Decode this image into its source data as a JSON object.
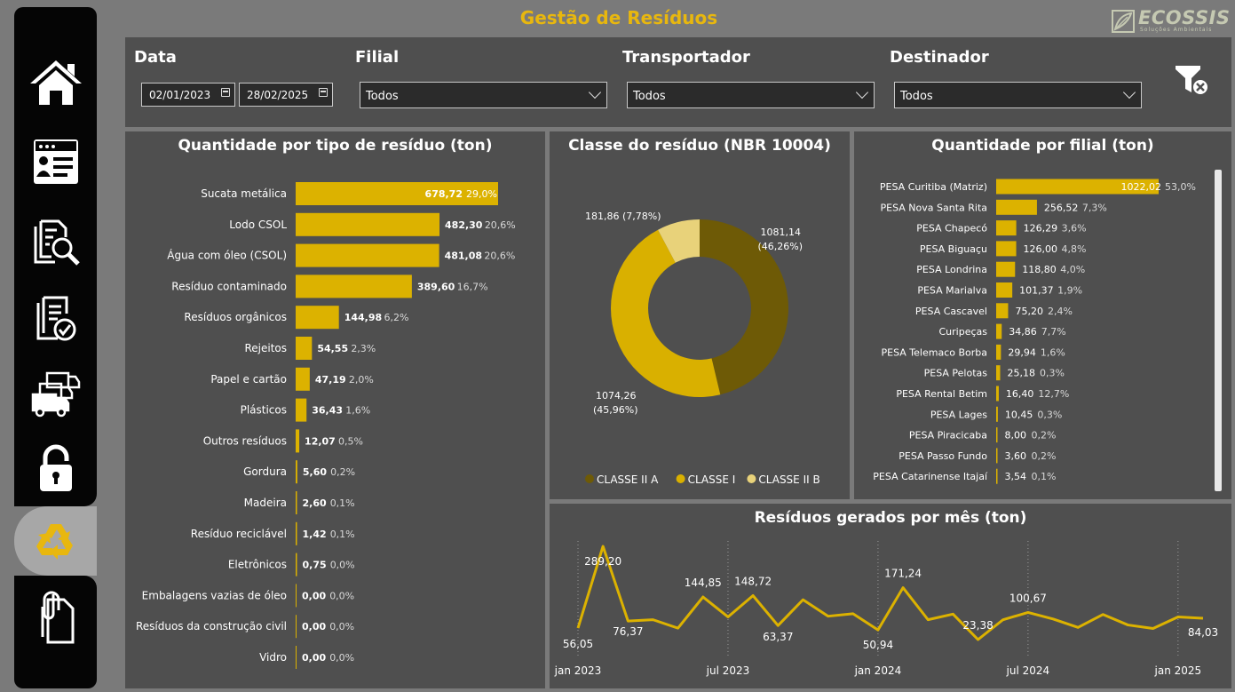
{
  "header": {
    "title": "Gestão de Resíduos"
  },
  "logo": {
    "name": "ECOSSIS",
    "tagline": "Soluções Ambientais"
  },
  "sidebar": {
    "items": [
      {
        "icon": "home-icon"
      },
      {
        "icon": "id-card-icon"
      },
      {
        "icon": "document-search-icon"
      },
      {
        "icon": "document-check-icon"
      },
      {
        "icon": "trucks-icon"
      },
      {
        "icon": "lock-icon"
      },
      {
        "icon": "recycle-icon",
        "active": true
      },
      {
        "icon": "documents-clip-icon"
      }
    ]
  },
  "filters": {
    "date_label": "Data",
    "date_start": "02/01/2023",
    "date_end": "28/02/2025",
    "filial_label": "Filial",
    "filial_value": "Todos",
    "transportador_label": "Transportador",
    "transportador_value": "Todos",
    "destinador_label": "Destinador",
    "destinador_value": "Todos"
  },
  "panels": {
    "tipo_title": "Quantidade por tipo de resíduo (ton)",
    "classe_title": "Classe do resíduo (NBR 10004)",
    "filial_title": "Quantidade por filial (ton)",
    "mes_title": "Resíduos gerados por mês (ton)"
  },
  "colors": {
    "accent": "#e8b70e",
    "bar": "#dcb200",
    "panel": "#4f4f4f",
    "background": "#7a7a7a",
    "sidebar": "#050505",
    "classe_ii_a": "#6e5a06",
    "classe_i": "#d9b000",
    "classe_ii_b": "#e8d27a"
  },
  "chart_data": [
    {
      "type": "bar",
      "orientation": "horizontal",
      "title": "Quantidade por tipo de resíduo (ton)",
      "categories": [
        "Sucata metálica",
        "Lodo CSOL",
        "Água com óleo (CSOL)",
        "Resíduo contaminado",
        "Resíduos orgânicos",
        "Rejeitos",
        "Papel e cartão",
        "Plásticos",
        "Outros resíduos",
        "Gordura",
        "Madeira",
        "Resíduo reciclável",
        "Eletrônicos",
        "Embalagens vazias de óleo",
        "Resíduos da construção civil",
        "Vidro"
      ],
      "values": [
        678.72,
        482.3,
        481.08,
        389.6,
        144.98,
        54.55,
        47.19,
        36.43,
        12.07,
        5.6,
        2.6,
        1.42,
        0.75,
        0.0,
        0.0,
        0.0
      ],
      "value_labels": [
        "678,72",
        "482,30",
        "481,08",
        "389,60",
        "144,98",
        "54,55",
        "47,19",
        "36,43",
        "12,07",
        "5,60",
        "2,60",
        "1,42",
        "0,75",
        "0,00",
        "0,00",
        "0,00"
      ],
      "pct_labels": [
        "29,0%",
        "20,6%",
        "20,6%",
        "16,7%",
        "6,2%",
        "2,3%",
        "2,0%",
        "1,6%",
        "0,5%",
        "0,2%",
        "0,1%",
        "0,1%",
        "0,0%",
        "0,0%",
        "0,0%",
        "0,0%"
      ]
    },
    {
      "type": "pie",
      "donut": true,
      "title": "Classe do resíduo (NBR 10004)",
      "categories": [
        "CLASSE II A",
        "CLASSE I",
        "CLASSE II B"
      ],
      "values": [
        1081.14,
        1074.26,
        181.86
      ],
      "labels": [
        [
          "1081,14",
          "(46,26%)"
        ],
        [
          "1074,26",
          "(45,96%)"
        ],
        [
          "181,86 (7,78%)"
        ]
      ],
      "legend": "bottom"
    },
    {
      "type": "bar",
      "orientation": "horizontal",
      "title": "Quantidade por filial (ton)",
      "categories": [
        "PESA Curitiba (Matriz)",
        "PESA Nova Santa Rita",
        "PESA Chapecó",
        "PESA Biguaçu",
        "PESA Londrina",
        "PESA Marialva",
        "PESA Cascavel",
        "Curipeças",
        "PESA Telemaco Borba",
        "PESA Pelotas",
        "PESA Rental Betim",
        "PESA Lages",
        "PESA Piracicaba",
        "PESA Passo Fundo",
        "PESA Catarinense Itajaí"
      ],
      "values": [
        1022.02,
        256.52,
        126.29,
        126.0,
        118.8,
        101.37,
        75.2,
        34.86,
        29.94,
        25.18,
        16.4,
        10.45,
        8.0,
        3.6,
        3.54
      ],
      "value_labels": [
        "1022,02",
        "256,52",
        "126,29",
        "126,00",
        "118,80",
        "101,37",
        "75,20",
        "34,86",
        "29,94",
        "25,18",
        "16,40",
        "10,45",
        "8,00",
        "3,60",
        "3,54"
      ],
      "pct_labels": [
        "53,0%",
        "7,3%",
        "3,6%",
        "4,8%",
        "4,0%",
        "1,9%",
        "2,4%",
        "7,7%",
        "1,6%",
        "0,3%",
        "12,7%",
        "0,3%",
        "0,2%",
        "0,2%",
        "0,1%"
      ]
    },
    {
      "type": "line",
      "title": "Resíduos gerados por mês (ton)",
      "x": [
        "2023-01",
        "2023-02",
        "2023-03",
        "2023-04",
        "2023-05",
        "2023-06",
        "2023-07",
        "2023-08",
        "2023-09",
        "2023-10",
        "2023-11",
        "2023-12",
        "2024-01",
        "2024-02",
        "2024-03",
        "2024-04",
        "2024-05",
        "2024-06",
        "2024-07",
        "2024-08",
        "2024-09",
        "2024-10",
        "2024-11",
        "2024-12",
        "2025-01",
        "2025-02"
      ],
      "values": [
        56.05,
        289.2,
        76.37,
        80,
        56,
        144.85,
        88,
        148.72,
        63.37,
        137,
        90,
        97,
        50.94,
        171.24,
        80,
        96,
        23.38,
        80,
        100.67,
        82,
        58,
        95,
        65,
        55,
        88,
        84.03
      ],
      "point_labels": {
        "0": "56,05",
        "1": "289,20",
        "2": "76,37",
        "5": "144,85",
        "7": "148,72",
        "8": "63,37",
        "12": "50,94",
        "13": "171,24",
        "16": "23,38",
        "18": "100,67",
        "25": "84,03"
      },
      "x_ticks": [
        {
          "i": 0,
          "label": "jan 2023"
        },
        {
          "i": 6,
          "label": "jul 2023"
        },
        {
          "i": 12,
          "label": "jan 2024"
        },
        {
          "i": 18,
          "label": "jul 2024"
        },
        {
          "i": 24,
          "label": "jan 2025"
        }
      ]
    }
  ]
}
